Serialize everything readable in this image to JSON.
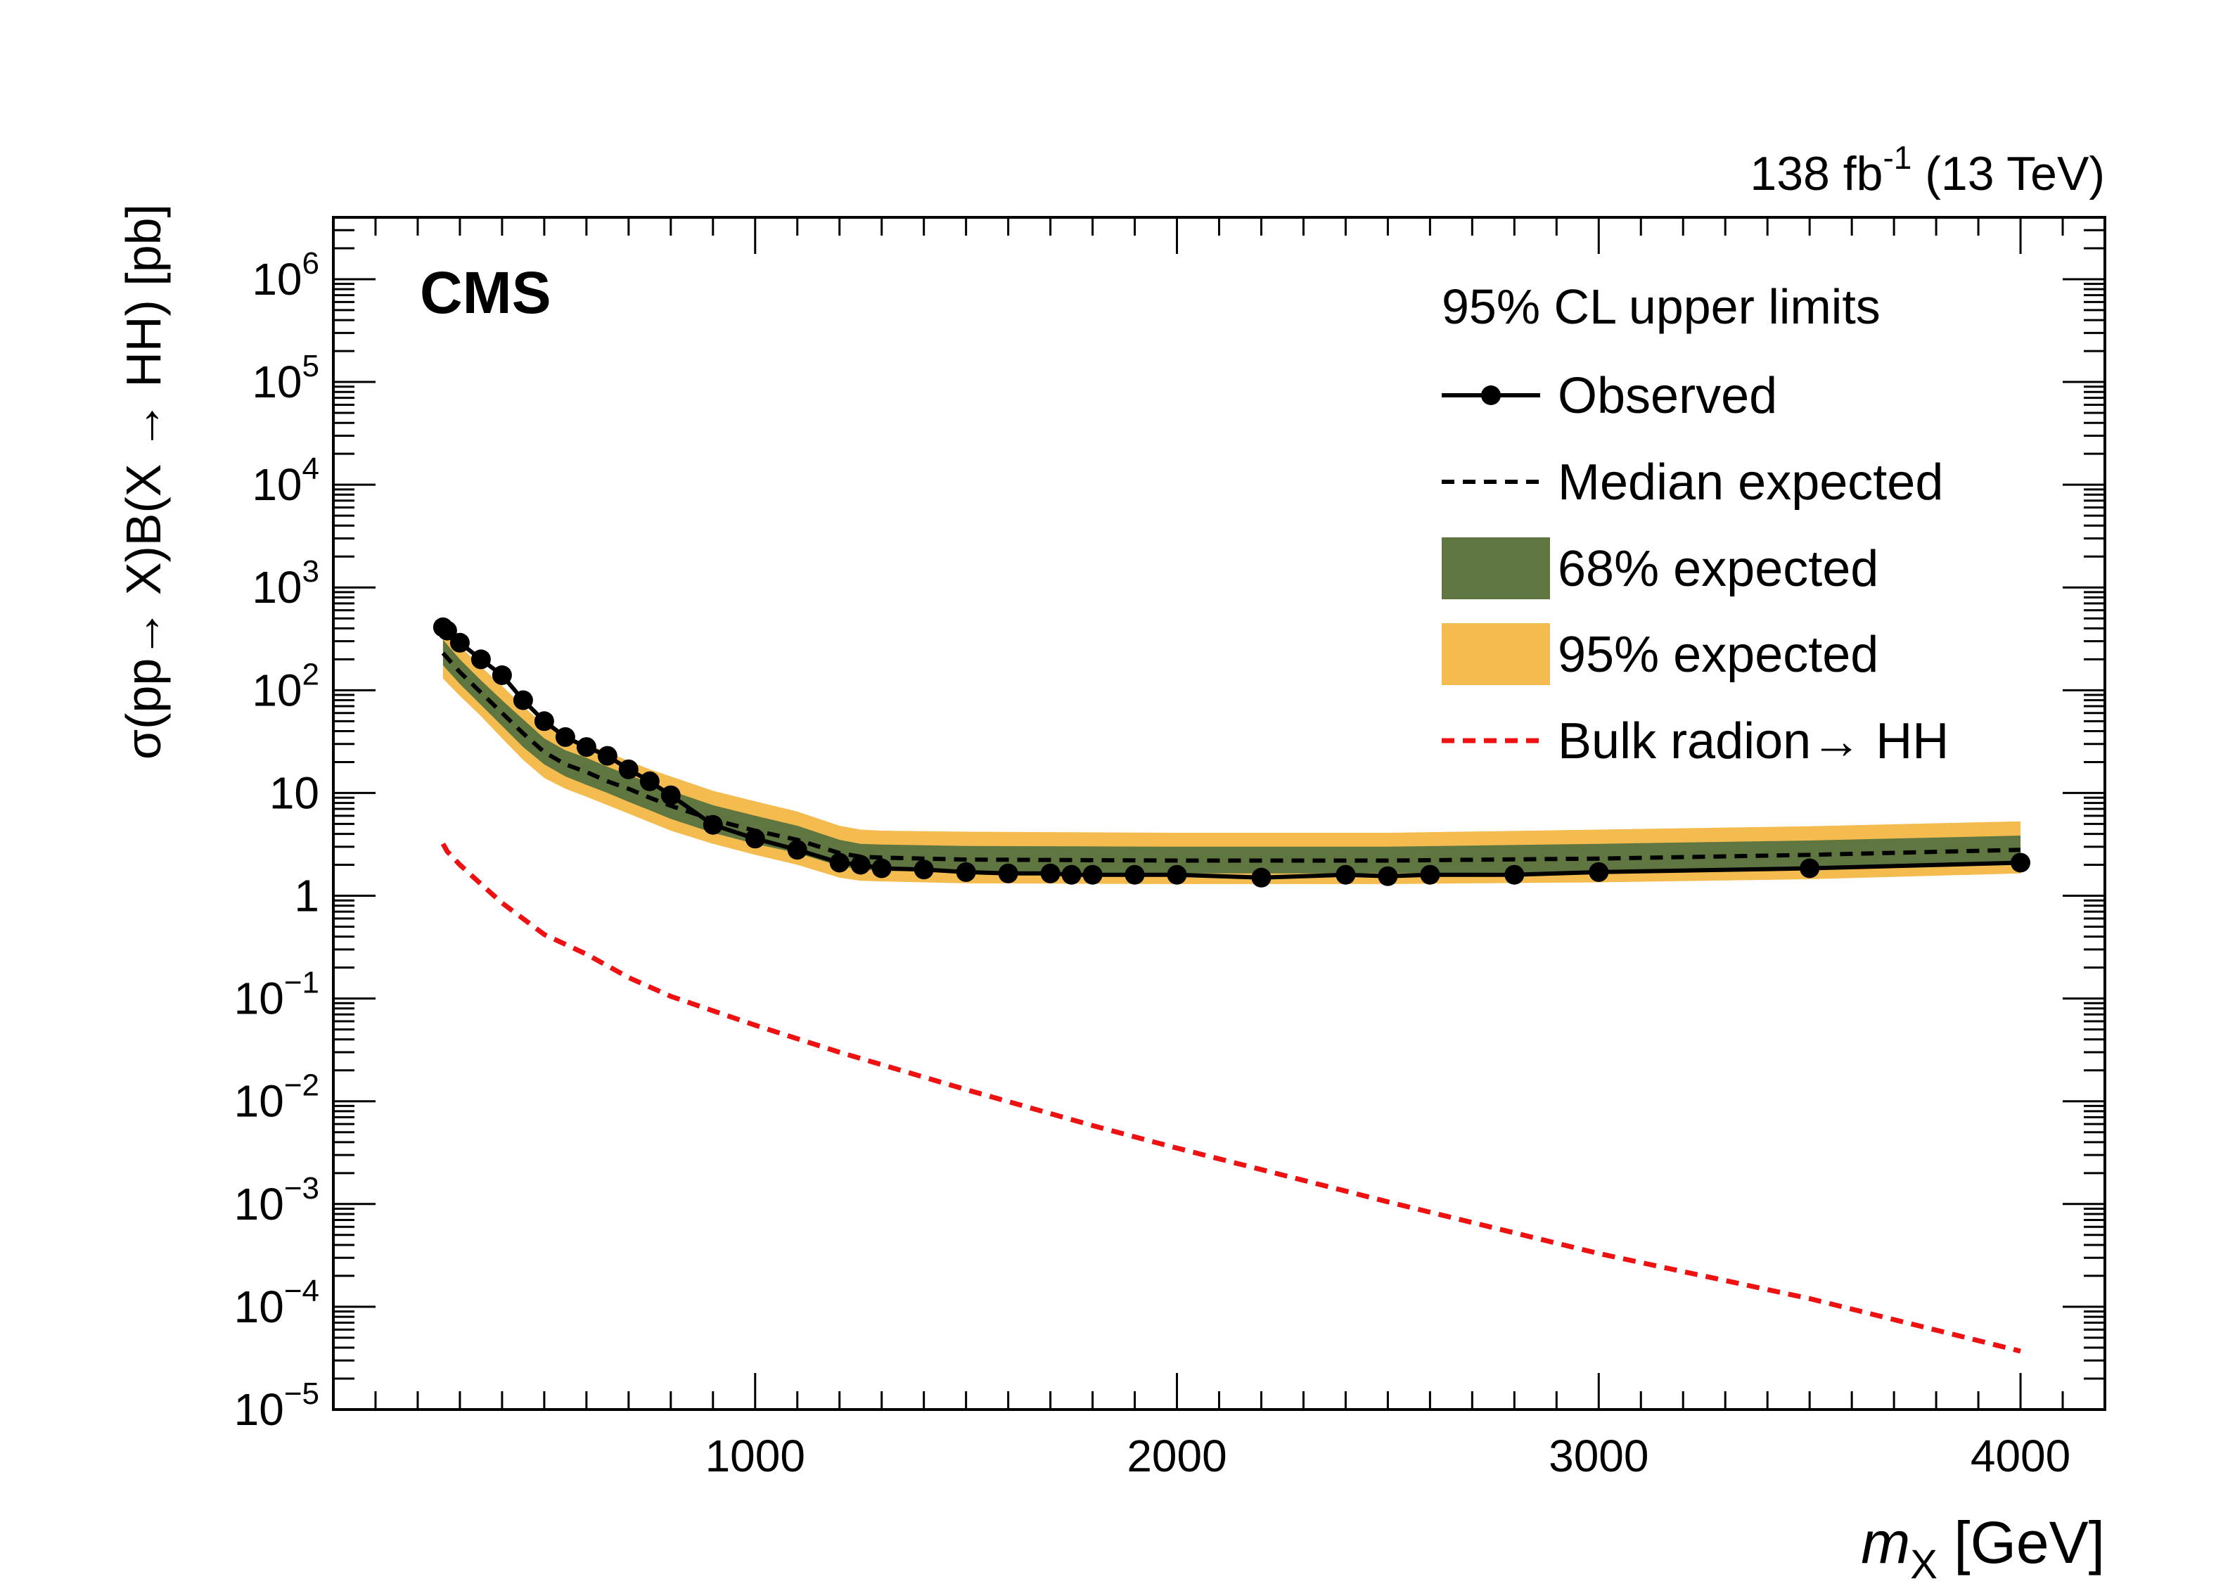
{
  "chart_data": {
    "type": "line",
    "experiment": "CMS",
    "lumi_label": {
      "value": "138 fb",
      "sup": "-1",
      "suffix": " (13 TeV)"
    },
    "xlabel": {
      "var": "m",
      "sub": "X",
      "unit": " [GeV]"
    },
    "ylabel": "σ(pp→ X)B(X → HH) [pb]",
    "xlim": [
      0,
      4200
    ],
    "ylim": [
      1e-05,
      4000000.0
    ],
    "x_scale": "linear",
    "y_scale": "log",
    "x_ticks": [
      1000,
      2000,
      3000,
      4000
    ],
    "y_ticks": [
      {
        "value": 1e-05,
        "base": "10",
        "exp": "−5"
      },
      {
        "value": 0.0001,
        "base": "10",
        "exp": "−4"
      },
      {
        "value": 0.001,
        "base": "10",
        "exp": "−3"
      },
      {
        "value": 0.01,
        "base": "10",
        "exp": "−2"
      },
      {
        "value": 0.1,
        "base": "10",
        "exp": "−1"
      },
      {
        "value": 1,
        "base": "1",
        "exp": ""
      },
      {
        "value": 10,
        "base": "10",
        "exp": ""
      },
      {
        "value": 100,
        "base": "10",
        "exp": "2"
      },
      {
        "value": 1000,
        "base": "10",
        "exp": "3"
      },
      {
        "value": 10000,
        "base": "10",
        "exp": "4"
      },
      {
        "value": 100000,
        "base": "10",
        "exp": "5"
      },
      {
        "value": 1000000,
        "base": "10",
        "exp": "6"
      }
    ],
    "legend": {
      "title": "95% CL upper limits",
      "position": "top-right",
      "entries": [
        {
          "label": "Observed",
          "style": "solid-marker"
        },
        {
          "label": "Median expected",
          "style": "dashed"
        },
        {
          "label": "68% expected",
          "style": "band68"
        },
        {
          "label": "95% expected",
          "style": "band95"
        },
        {
          "label": "Bulk radion→ HH",
          "style": "red-dashed"
        }
      ]
    },
    "colors": {
      "band68": "#607641",
      "band95": "#F4BB4F",
      "observed": "#000000",
      "expected": "#000000",
      "theory": "#EE1111"
    },
    "series": [
      {
        "name": "Observed",
        "x": [
          260,
          270,
          300,
          350,
          400,
          450,
          500,
          550,
          600,
          650,
          700,
          750,
          800,
          850,
          900,
          1000,
          1100,
          1200,
          1250,
          1300,
          1400,
          1500,
          1600,
          1700,
          1750,
          1800,
          1900,
          2000,
          2200,
          2400,
          2500,
          2600,
          2800,
          3000,
          3500,
          4000
        ],
        "y": [
          410,
          380,
          290,
          200,
          140,
          80,
          50,
          35,
          28,
          23,
          17,
          13,
          9.5,
          null,
          4.9,
          3.6,
          2.8,
          2.1,
          2.0,
          1.85,
          1.8,
          1.7,
          1.65,
          1.65,
          1.6,
          1.6,
          1.6,
          1.6,
          1.5,
          1.6,
          1.55,
          1.6,
          1.6,
          1.7,
          1.85,
          2.1
        ]
      },
      {
        "name": "Median expected",
        "x": [
          260,
          300,
          350,
          400,
          450,
          500,
          550,
          600,
          650,
          700,
          750,
          800,
          900,
          1000,
          1100,
          1200,
          1250,
          1300,
          1400,
          1500,
          2000,
          2500,
          3000,
          3500,
          4000
        ],
        "y": [
          230,
          150,
          95,
          60,
          38,
          25,
          19,
          16,
          13,
          11,
          9,
          7.5,
          5.5,
          4.3,
          3.5,
          2.6,
          2.4,
          2.35,
          2.3,
          2.25,
          2.2,
          2.2,
          2.3,
          2.5,
          2.8
        ]
      },
      {
        "name": "68% expected",
        "x": [
          260,
          300,
          350,
          400,
          450,
          500,
          550,
          600,
          650,
          700,
          750,
          800,
          900,
          1000,
          1100,
          1200,
          1250,
          1300,
          1400,
          1500,
          2000,
          2500,
          3000,
          3500,
          4000
        ],
        "lo": [
          175,
          115,
          72,
          45,
          28,
          19,
          14.5,
          12,
          10,
          8.2,
          6.8,
          5.6,
          4.1,
          3.2,
          2.6,
          1.95,
          1.8,
          1.75,
          1.72,
          1.7,
          1.65,
          1.65,
          1.7,
          1.85,
          2.1
        ],
        "hi": [
          310,
          200,
          125,
          80,
          52,
          34,
          26,
          22,
          18,
          15,
          12.5,
          10.5,
          7.6,
          6.0,
          4.8,
          3.5,
          3.2,
          3.15,
          3.1,
          3.05,
          3.0,
          3.0,
          3.2,
          3.45,
          3.85
        ]
      },
      {
        "name": "95% expected",
        "x": [
          260,
          300,
          350,
          400,
          450,
          500,
          550,
          600,
          650,
          700,
          750,
          800,
          900,
          1000,
          1100,
          1200,
          1250,
          1300,
          1400,
          1500,
          2000,
          2500,
          3000,
          3500,
          4000
        ],
        "lo": [
          130,
          88,
          56,
          34,
          21,
          14,
          11,
          9.2,
          7.6,
          6.3,
          5.2,
          4.3,
          3.2,
          2.5,
          2.0,
          1.5,
          1.4,
          1.38,
          1.35,
          1.32,
          1.3,
          1.3,
          1.35,
          1.45,
          1.65
        ],
        "hi": [
          420,
          270,
          170,
          110,
          70,
          46,
          35,
          30,
          25,
          20.5,
          17,
          14.5,
          10.5,
          8.3,
          6.6,
          4.8,
          4.4,
          4.3,
          4.25,
          4.2,
          4.1,
          4.1,
          4.4,
          4.75,
          5.3
        ]
      },
      {
        "name": "Bulk radion→ HH",
        "x": [
          260,
          270,
          300,
          350,
          400,
          500,
          600,
          700,
          800,
          1000,
          1200,
          1500,
          1800,
          2000,
          2500,
          3000,
          3500,
          4000
        ],
        "y": [
          3.2,
          2.7,
          2.0,
          1.3,
          0.85,
          0.42,
          0.27,
          0.16,
          0.105,
          0.055,
          0.03,
          0.013,
          0.0058,
          0.0035,
          0.00105,
          0.00033,
          0.00012,
          3.7e-05
        ]
      }
    ]
  }
}
